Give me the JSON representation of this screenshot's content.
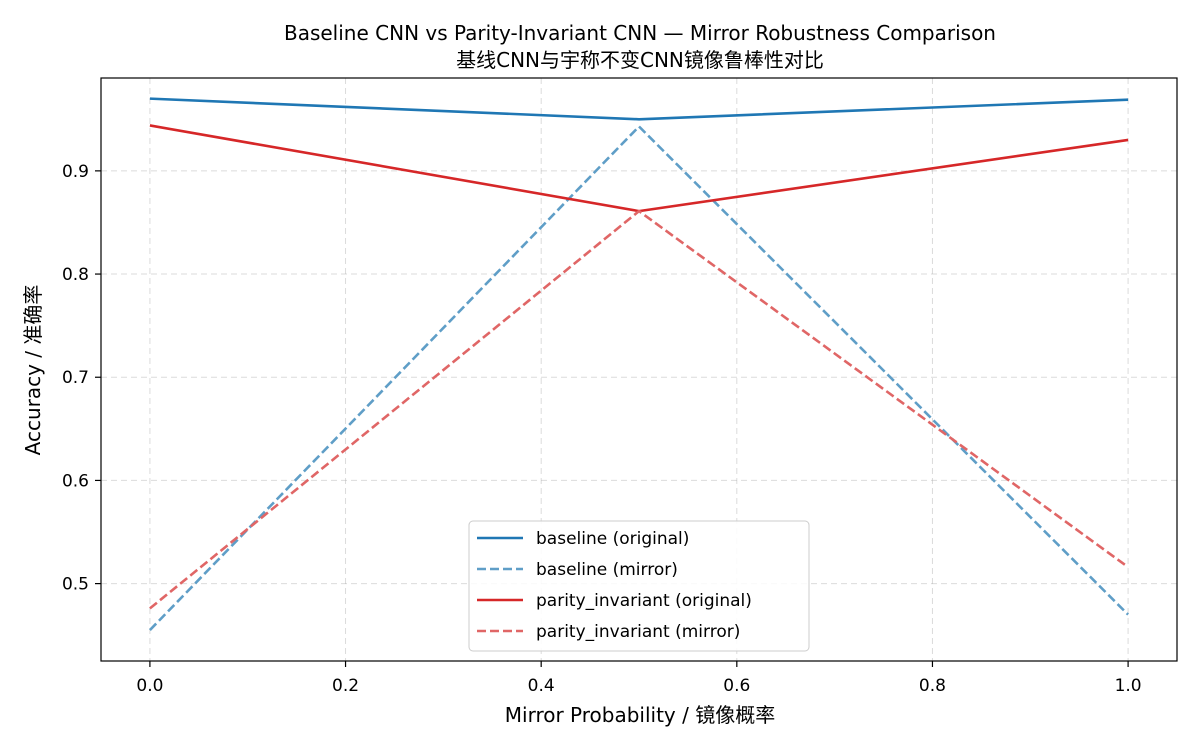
{
  "chart_data": {
    "type": "line",
    "title": "Baseline CNN vs Parity-Invariant CNN — Mirror Robustness Comparison",
    "subtitle": "基线CNN与宇称不变CNN镜像鲁棒性对比",
    "xlabel": "Mirror Probability / 镜像概率",
    "ylabel": "Accuracy / 准确率",
    "xlim": [
      -0.05,
      1.05
    ],
    "ylim": [
      0.425,
      0.99
    ],
    "xticks": [
      "0.0",
      "0.2",
      "0.4",
      "0.6",
      "0.8",
      "1.0"
    ],
    "yticks": [
      "0.5",
      "0.6",
      "0.7",
      "0.8",
      "0.9"
    ],
    "grid": true,
    "legend_position": "lower center",
    "x": [
      0.0,
      0.5,
      1.0
    ],
    "series": [
      {
        "name": "baseline (original)",
        "values": [
          0.97,
          0.95,
          0.969
        ],
        "color": "#1f77b4",
        "style": "solid"
      },
      {
        "name": "baseline (mirror)",
        "values": [
          0.455,
          0.943,
          0.47
        ],
        "color": "#5f9ec7",
        "style": "dashed"
      },
      {
        "name": "parity_invariant (original)",
        "values": [
          0.944,
          0.861,
          0.93
        ],
        "color": "#d62728",
        "style": "solid"
      },
      {
        "name": "parity_invariant (mirror)",
        "values": [
          0.476,
          0.861,
          0.516
        ],
        "color": "#e06666",
        "style": "dashed"
      }
    ]
  }
}
